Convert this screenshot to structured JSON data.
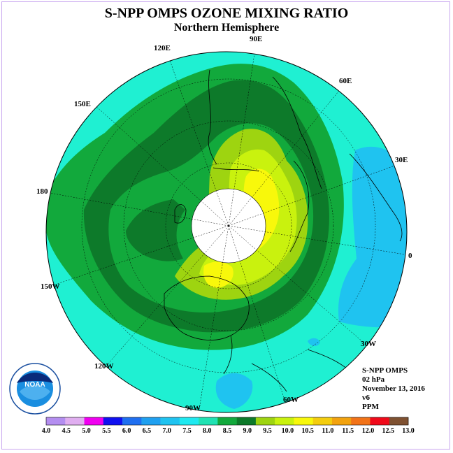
{
  "title": "S-NPP OMPS OZONE MIXING RATIO",
  "subtitle": "Northern Hemisphere",
  "longitude_labels": [
    "90E",
    "60E",
    "30E",
    "0",
    "30W",
    "60W",
    "90W",
    "120W",
    "150W",
    "180",
    "150E",
    "120E"
  ],
  "info": {
    "instrument": "S-NPP OMPS",
    "level": "02 hPa",
    "date": "November 13, 2016",
    "version": "v6",
    "units": "PPM"
  },
  "logo_text": "NOAA",
  "colorbar": {
    "labels": [
      "4.0",
      "4.5",
      "5.0",
      "5.5",
      "6.0",
      "6.5",
      "7.0",
      "7.5",
      "8.0",
      "8.5",
      "9.0",
      "9.5",
      "10.0",
      "10.5",
      "11.0",
      "11.5",
      "12.0",
      "12.5",
      "13.0"
    ],
    "colors": [
      "#b48ef0",
      "#e0aef0",
      "#f000f0",
      "#1010f0",
      "#1f6ff0",
      "#1fa0f0",
      "#1fc3f0",
      "#1fe9f0",
      "#20e2b3",
      "#12a93c",
      "#0d7a2a",
      "#9ed410",
      "#c9f20e",
      "#f8f80b",
      "#f4cd0e",
      "#f2a20e",
      "#f27318",
      "#f00a1a",
      "#7f5131"
    ]
  },
  "map_colors": {
    "ocean_cyan": "#1ff0d2",
    "light_blue": "#1fc3f0",
    "green_light": "#12a93c",
    "green_dark": "#0d7a2a",
    "yellow_green": "#9ed410",
    "lime": "#c9f20e",
    "yellow": "#f8f80b",
    "polar_void": "#ffffff"
  }
}
